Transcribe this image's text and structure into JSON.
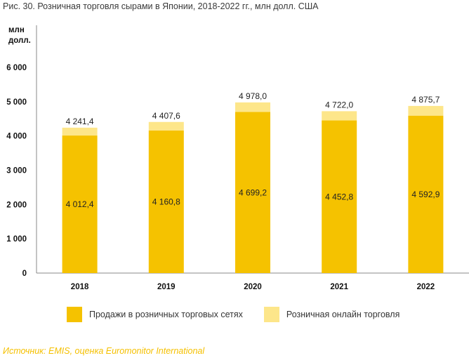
{
  "title": "Рис. 30. Розничная торговля сырами в Японии, 2018-2022 гг., млн долл. США",
  "unit_line1": "млн",
  "unit_line2": "долл.",
  "source": "Источник: EMIS, оценка Euromonitor International",
  "colors": {
    "retail": "#f5c200",
    "online": "#fde68a",
    "axis": "#888888"
  },
  "chart_data": {
    "type": "bar",
    "stacked": true,
    "title": "Рис. 30. Розничная торговля сырами в Японии, 2018-2022 гг., млн долл. США",
    "ylabel": "млн долл.",
    "ylim": [
      0,
      6000
    ],
    "yticks": [
      0,
      1000,
      2000,
      3000,
      4000,
      5000,
      6000
    ],
    "ytick_labels": [
      "0",
      "1 000",
      "2 000",
      "3 000",
      "4 000",
      "5 000",
      "6 000"
    ],
    "categories": [
      "2018",
      "2019",
      "2020",
      "2021",
      "2022"
    ],
    "series": [
      {
        "name": "Продажи в розничных торговых сетях",
        "values": [
          4012.4,
          4160.8,
          4699.2,
          4452.8,
          4592.9
        ],
        "labels": [
          "4 012,4",
          "4 160,8",
          "4 699,2",
          "4 452,8",
          "4 592,9"
        ]
      },
      {
        "name": "Розничная онлайн торговля",
        "values": [
          229.0,
          246.8,
          278.8,
          269.2,
          282.8
        ]
      }
    ],
    "totals": [
      4241.4,
      4407.6,
      4978.0,
      4722.0,
      4875.7
    ],
    "total_labels": [
      "4 241,4",
      "4 407,6",
      "4 978,0",
      "4 722,0",
      "4 875,7"
    ],
    "legend": "bottom",
    "grid": false
  }
}
